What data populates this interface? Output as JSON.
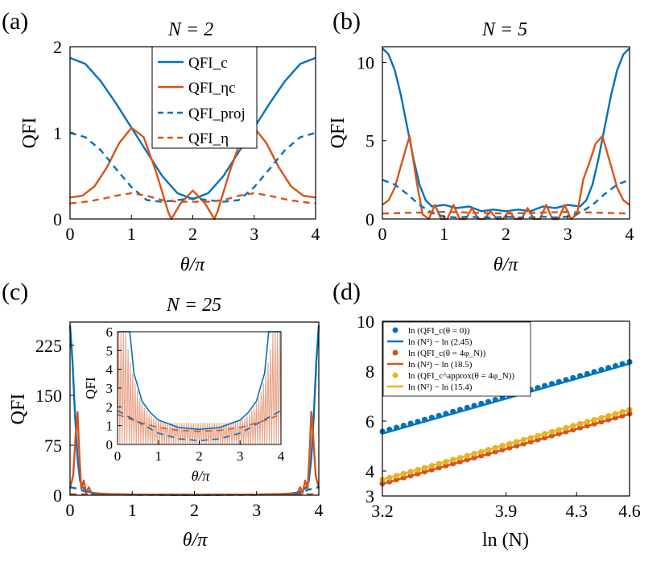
{
  "figure": {
    "colors": {
      "blue": "#0072bd",
      "orange": "#d95319",
      "yellow": "#edb120",
      "axis": "#000000"
    }
  },
  "panels": {
    "a": {
      "label": "(a)",
      "title": "N = 2",
      "ylabel": "QFI",
      "xlabel": "θ/π",
      "xticks": [
        "0",
        "1",
        "2",
        "3",
        "4"
      ],
      "yticks": [
        "0",
        "1",
        "2"
      ],
      "legend": [
        "QFI_c",
        "QFI_ηc",
        "QFI_proj",
        "QFI_η"
      ]
    },
    "b": {
      "label": "(b)",
      "title": "N = 5",
      "ylabel": "QFI",
      "xlabel": "θ/π",
      "xticks": [
        "0",
        "1",
        "2",
        "3",
        "4"
      ],
      "yticks": [
        "0",
        "5",
        "10"
      ]
    },
    "c": {
      "label": "(c)",
      "title": "N = 25",
      "ylabel": "QFI",
      "xlabel": "θ/π",
      "xticks": [
        "0",
        "1",
        "2",
        "3",
        "4"
      ],
      "yticks": [
        "0",
        "75",
        "150",
        "225"
      ],
      "inset": {
        "ylabel": "QFI",
        "xlabel": "θ/π",
        "xticks": [
          "0",
          "1",
          "2",
          "3",
          "4"
        ],
        "yticks": [
          "0",
          "1",
          "2",
          "3",
          "4",
          "5",
          "6"
        ]
      }
    },
    "d": {
      "label": "(d)",
      "ylabel": "",
      "xlabel": "ln (N)",
      "xticks": [
        "3.2",
        "3.9",
        "4.3",
        "4.6"
      ],
      "yticks": [
        "3",
        "4",
        "6",
        "8",
        "10"
      ],
      "legend": [
        "ln (QFI_c(θ = 0))",
        "ln (N²) − ln (2.45)",
        "ln (QFI_c(θ = 4φ_N))",
        "ln (N²) − ln (18.5)",
        "ln (QFI_c^approx(θ = 4φ_N))",
        "ln (N²) − ln (15.4)"
      ]
    }
  },
  "chart_data": [
    {
      "type": "line",
      "panel": "a",
      "title": "N = 2",
      "xlabel": "θ/π",
      "ylabel": "QFI",
      "xlim": [
        0,
        4
      ],
      "ylim": [
        0,
        2
      ],
      "series": [
        {
          "name": "QFI_c",
          "style": "solid",
          "color": "#0072bd",
          "x": [
            0,
            0.25,
            0.5,
            0.75,
            1,
            1.25,
            1.5,
            1.75,
            2,
            2.25,
            2.5,
            2.75,
            3,
            3.25,
            3.5,
            3.75,
            4
          ],
          "y": [
            1.87,
            1.8,
            1.6,
            1.34,
            1.06,
            0.78,
            0.5,
            0.3,
            0.23,
            0.3,
            0.5,
            0.78,
            1.06,
            1.34,
            1.6,
            1.8,
            1.87
          ]
        },
        {
          "name": "QFI_ηc",
          "style": "solid",
          "color": "#d95319",
          "x": [
            0,
            0.2,
            0.4,
            0.6,
            0.8,
            1,
            1.2,
            1.4,
            1.6,
            1.65,
            1.8,
            2,
            2.2,
            2.35,
            2.4,
            2.6,
            2.8,
            3,
            3.2,
            3.4,
            3.6,
            3.8,
            4
          ],
          "y": [
            0.25,
            0.27,
            0.38,
            0.6,
            0.88,
            1.06,
            0.95,
            0.55,
            0.08,
            0,
            0.18,
            0.33,
            0.18,
            0,
            0.08,
            0.55,
            0.95,
            1.06,
            0.88,
            0.6,
            0.38,
            0.27,
            0.25
          ]
        },
        {
          "name": "QFI_proj",
          "style": "dashed",
          "color": "#0072bd",
          "x": [
            0,
            0.25,
            0.5,
            0.75,
            1,
            1.25,
            1.5,
            1.75,
            2,
            2.25,
            2.5,
            2.75,
            3,
            3.25,
            3.5,
            3.75,
            4
          ],
          "y": [
            1.0,
            0.95,
            0.8,
            0.58,
            0.37,
            0.22,
            0.2,
            0.22,
            0.24,
            0.22,
            0.2,
            0.22,
            0.37,
            0.58,
            0.8,
            0.95,
            1.0
          ]
        },
        {
          "name": "QFI_η",
          "style": "dashed",
          "color": "#d95319",
          "x": [
            0,
            0.25,
            0.5,
            0.75,
            1,
            1.25,
            1.5,
            1.75,
            2,
            2.25,
            2.5,
            2.75,
            3,
            3.25,
            3.5,
            3.75,
            4
          ],
          "y": [
            0.18,
            0.2,
            0.23,
            0.27,
            0.3,
            0.27,
            0.22,
            0.2,
            0.2,
            0.2,
            0.22,
            0.27,
            0.3,
            0.27,
            0.23,
            0.2,
            0.18
          ]
        }
      ]
    },
    {
      "type": "line",
      "panel": "b",
      "title": "N = 5",
      "xlabel": "θ/π",
      "ylabel": "QFI",
      "xlim": [
        0,
        4
      ],
      "ylim": [
        0,
        11
      ],
      "series": [
        {
          "name": "QFI_c",
          "style": "solid",
          "color": "#0072bd",
          "x": [
            0,
            0.1,
            0.2,
            0.3,
            0.4,
            0.5,
            0.6,
            0.7,
            0.8,
            1,
            1.2,
            1.4,
            1.6,
            1.8,
            2,
            2.2,
            2.4,
            2.6,
            2.8,
            3,
            3.2,
            3.3,
            3.4,
            3.5,
            3.6,
            3.7,
            3.8,
            3.9,
            4
          ],
          "y": [
            10.9,
            10.5,
            9.5,
            7.9,
            5.9,
            3.9,
            2.2,
            1.2,
            0.8,
            0.9,
            0.7,
            0.8,
            0.5,
            0.6,
            0.5,
            0.6,
            0.5,
            0.8,
            0.7,
            0.9,
            0.8,
            1.2,
            2.2,
            3.9,
            5.9,
            7.9,
            9.5,
            10.5,
            10.9
          ]
        },
        {
          "name": "QFI_ηc",
          "style": "solid",
          "color": "#d95319",
          "x": [
            0,
            0.1,
            0.2,
            0.3,
            0.44,
            0.55,
            0.65,
            0.75,
            0.85,
            0.95,
            1.05,
            1.15,
            1.25,
            1.35,
            1.45,
            1.55,
            1.65,
            1.75,
            1.85,
            1.95,
            2.05,
            2.15,
            2.25,
            2.35,
            2.45,
            2.55,
            2.65,
            2.75,
            2.85,
            2.95,
            3.05,
            3.15,
            3.25,
            3.35,
            3.45,
            3.56,
            3.7,
            3.8,
            3.9,
            4
          ],
          "y": [
            0.9,
            1.2,
            2.0,
            3.4,
            5.3,
            2.5,
            0.3,
            0.0,
            0.9,
            0.0,
            0.0,
            0.9,
            0.0,
            0.0,
            0.7,
            0.0,
            0.0,
            0.5,
            0.0,
            0.0,
            0.5,
            0.0,
            0.0,
            0.7,
            0.0,
            0.0,
            0.9,
            0.0,
            0.0,
            0.9,
            0.0,
            0.3,
            2.5,
            3.6,
            4.8,
            5.3,
            3.4,
            2.0,
            1.2,
            0.9
          ]
        },
        {
          "name": "QFI_proj",
          "style": "dashed",
          "color": "#0072bd",
          "x": [
            0,
            0.2,
            0.4,
            0.6,
            0.8,
            1,
            1.2,
            1.4,
            1.6,
            1.8,
            2,
            2.2,
            2.4,
            2.6,
            2.8,
            3,
            3.2,
            3.4,
            3.6,
            3.8,
            4
          ],
          "y": [
            2.5,
            2.2,
            1.6,
            0.9,
            0.4,
            0.15,
            0.1,
            0.15,
            0.1,
            0.1,
            0.15,
            0.1,
            0.1,
            0.15,
            0.1,
            0.15,
            0.4,
            0.9,
            1.6,
            2.2,
            2.5
          ]
        },
        {
          "name": "QFI_η",
          "style": "dashed",
          "color": "#d95319",
          "x": [
            0,
            0.5,
            1,
            1.5,
            2,
            2.5,
            3,
            3.5,
            4
          ],
          "y": [
            0.35,
            0.4,
            0.45,
            0.4,
            0.35,
            0.4,
            0.45,
            0.4,
            0.35
          ]
        }
      ]
    },
    {
      "type": "line",
      "panel": "c",
      "title": "N = 25",
      "xlabel": "θ/π",
      "ylabel": "QFI",
      "xlim": [
        0,
        4
      ],
      "ylim": [
        0,
        260
      ],
      "series": [
        {
          "name": "QFI_c",
          "style": "solid",
          "color": "#0072bd",
          "x": [
            0,
            0.04,
            0.08,
            0.12,
            0.16,
            0.2,
            0.25,
            0.3,
            0.4,
            0.6,
            1,
            2,
            3,
            3.4,
            3.6,
            3.7,
            3.75,
            3.8,
            3.84,
            3.88,
            3.92,
            3.96,
            4
          ],
          "y": [
            255,
            200,
            120,
            55,
            22,
            12,
            8,
            5,
            3,
            1.5,
            1,
            0.6,
            1,
            1.5,
            3,
            5,
            8,
            12,
            22,
            55,
            120,
            200,
            255
          ]
        },
        {
          "name": "QFI_ηc",
          "style": "solid",
          "color": "#d95319",
          "x": [
            0,
            0.05,
            0.09,
            0.12,
            0.15,
            0.18,
            0.22,
            0.26,
            0.3,
            0.35,
            0.5,
            1,
            2,
            3,
            3.5,
            3.65,
            3.7,
            3.74,
            3.78,
            3.82,
            3.85,
            3.88,
            3.91,
            3.95,
            4
          ],
          "y": [
            10,
            30,
            90,
            125,
            60,
            10,
            22,
            3,
            12,
            2,
            2,
            1,
            0.5,
            1,
            2,
            2,
            12,
            3,
            22,
            10,
            60,
            125,
            90,
            30,
            10
          ]
        },
        {
          "name": "QFI_proj",
          "style": "dashed",
          "color": "#0072bd",
          "x": [
            0,
            0.1,
            0.2,
            0.3,
            0.5,
            1,
            2,
            3,
            3.5,
            3.7,
            3.8,
            3.9,
            4
          ],
          "y": [
            12,
            10,
            7,
            4,
            1.5,
            0.6,
            0.4,
            0.6,
            1.5,
            4,
            7,
            10,
            12
          ]
        },
        {
          "name": "QFI_η",
          "style": "dashed",
          "color": "#d95319",
          "x": [
            0,
            0.5,
            1,
            2,
            3,
            3.5,
            4
          ],
          "y": [
            1.5,
            1.2,
            1,
            0.9,
            1,
            1.2,
            1.5
          ]
        }
      ],
      "inset": {
        "xlim": [
          0,
          4
        ],
        "ylim": [
          0,
          6
        ],
        "series": [
          {
            "name": "QFI_c",
            "color": "#0072bd",
            "x": [
              0,
              0.3,
              0.4,
              0.6,
              0.8,
              1,
              1.5,
              2,
              2.5,
              3,
              3.2,
              3.4,
              3.6,
              3.7,
              4
            ],
            "y": [
              6,
              6,
              3.8,
              2.3,
              1.7,
              1.3,
              0.9,
              0.8,
              0.9,
              1.3,
              1.7,
              2.3,
              3.8,
              6,
              6
            ]
          },
          {
            "name": "QFI_proj",
            "color": "#0072bd",
            "style": "dashed",
            "x": [
              0,
              0.5,
              1,
              1.5,
              2,
              2.5,
              3,
              3.5,
              4
            ],
            "y": [
              1.8,
              1.2,
              0.6,
              0.3,
              0.2,
              0.3,
              0.6,
              1.2,
              1.8
            ]
          },
          {
            "name": "QFI_η",
            "color": "#d95319",
            "style": "dashed",
            "x": [
              0,
              0.5,
              1,
              1.5,
              2,
              2.5,
              3,
              3.5,
              4
            ],
            "y": [
              1.6,
              1.2,
              0.9,
              0.75,
              0.7,
              0.75,
              0.9,
              1.2,
              1.6
            ]
          }
        ]
      }
    },
    {
      "type": "scatter",
      "panel": "d",
      "xlabel": "ln (N)",
      "ylabel": "",
      "xlim": [
        3.2,
        4.6
      ],
      "ylim": [
        3,
        10
      ],
      "series": [
        {
          "name": "ln (QFI_c(θ = 0))",
          "kind": "points",
          "color": "#0072bd",
          "x0": 3.2,
          "x1": 4.6,
          "y0": 5.58,
          "y1": 8.37,
          "count": 36
        },
        {
          "name": "ln (N²) − ln (2.45)",
          "kind": "line",
          "color": "#0072bd",
          "x": [
            3.2,
            4.6
          ],
          "y": [
            5.5,
            8.3
          ]
        },
        {
          "name": "ln (QFI_c(θ = 4φ_N))",
          "kind": "points",
          "color": "#d95319",
          "x0": 3.2,
          "x1": 4.6,
          "y0": 3.5,
          "y1": 6.3,
          "count": 36
        },
        {
          "name": "ln (N²) − ln (18.5)",
          "kind": "line",
          "color": "#d95319",
          "x": [
            3.2,
            4.6
          ],
          "y": [
            3.48,
            6.28
          ]
        },
        {
          "name": "ln (QFI_c^approx(θ = 4φ_N))",
          "kind": "points",
          "color": "#edb120",
          "x0": 3.2,
          "x1": 4.6,
          "y0": 3.65,
          "y1": 6.45,
          "count": 36
        },
        {
          "name": "ln (N²) − ln (15.4)",
          "kind": "line",
          "color": "#edb120",
          "x": [
            3.2,
            4.6
          ],
          "y": [
            3.66,
            6.46
          ]
        }
      ]
    }
  ]
}
